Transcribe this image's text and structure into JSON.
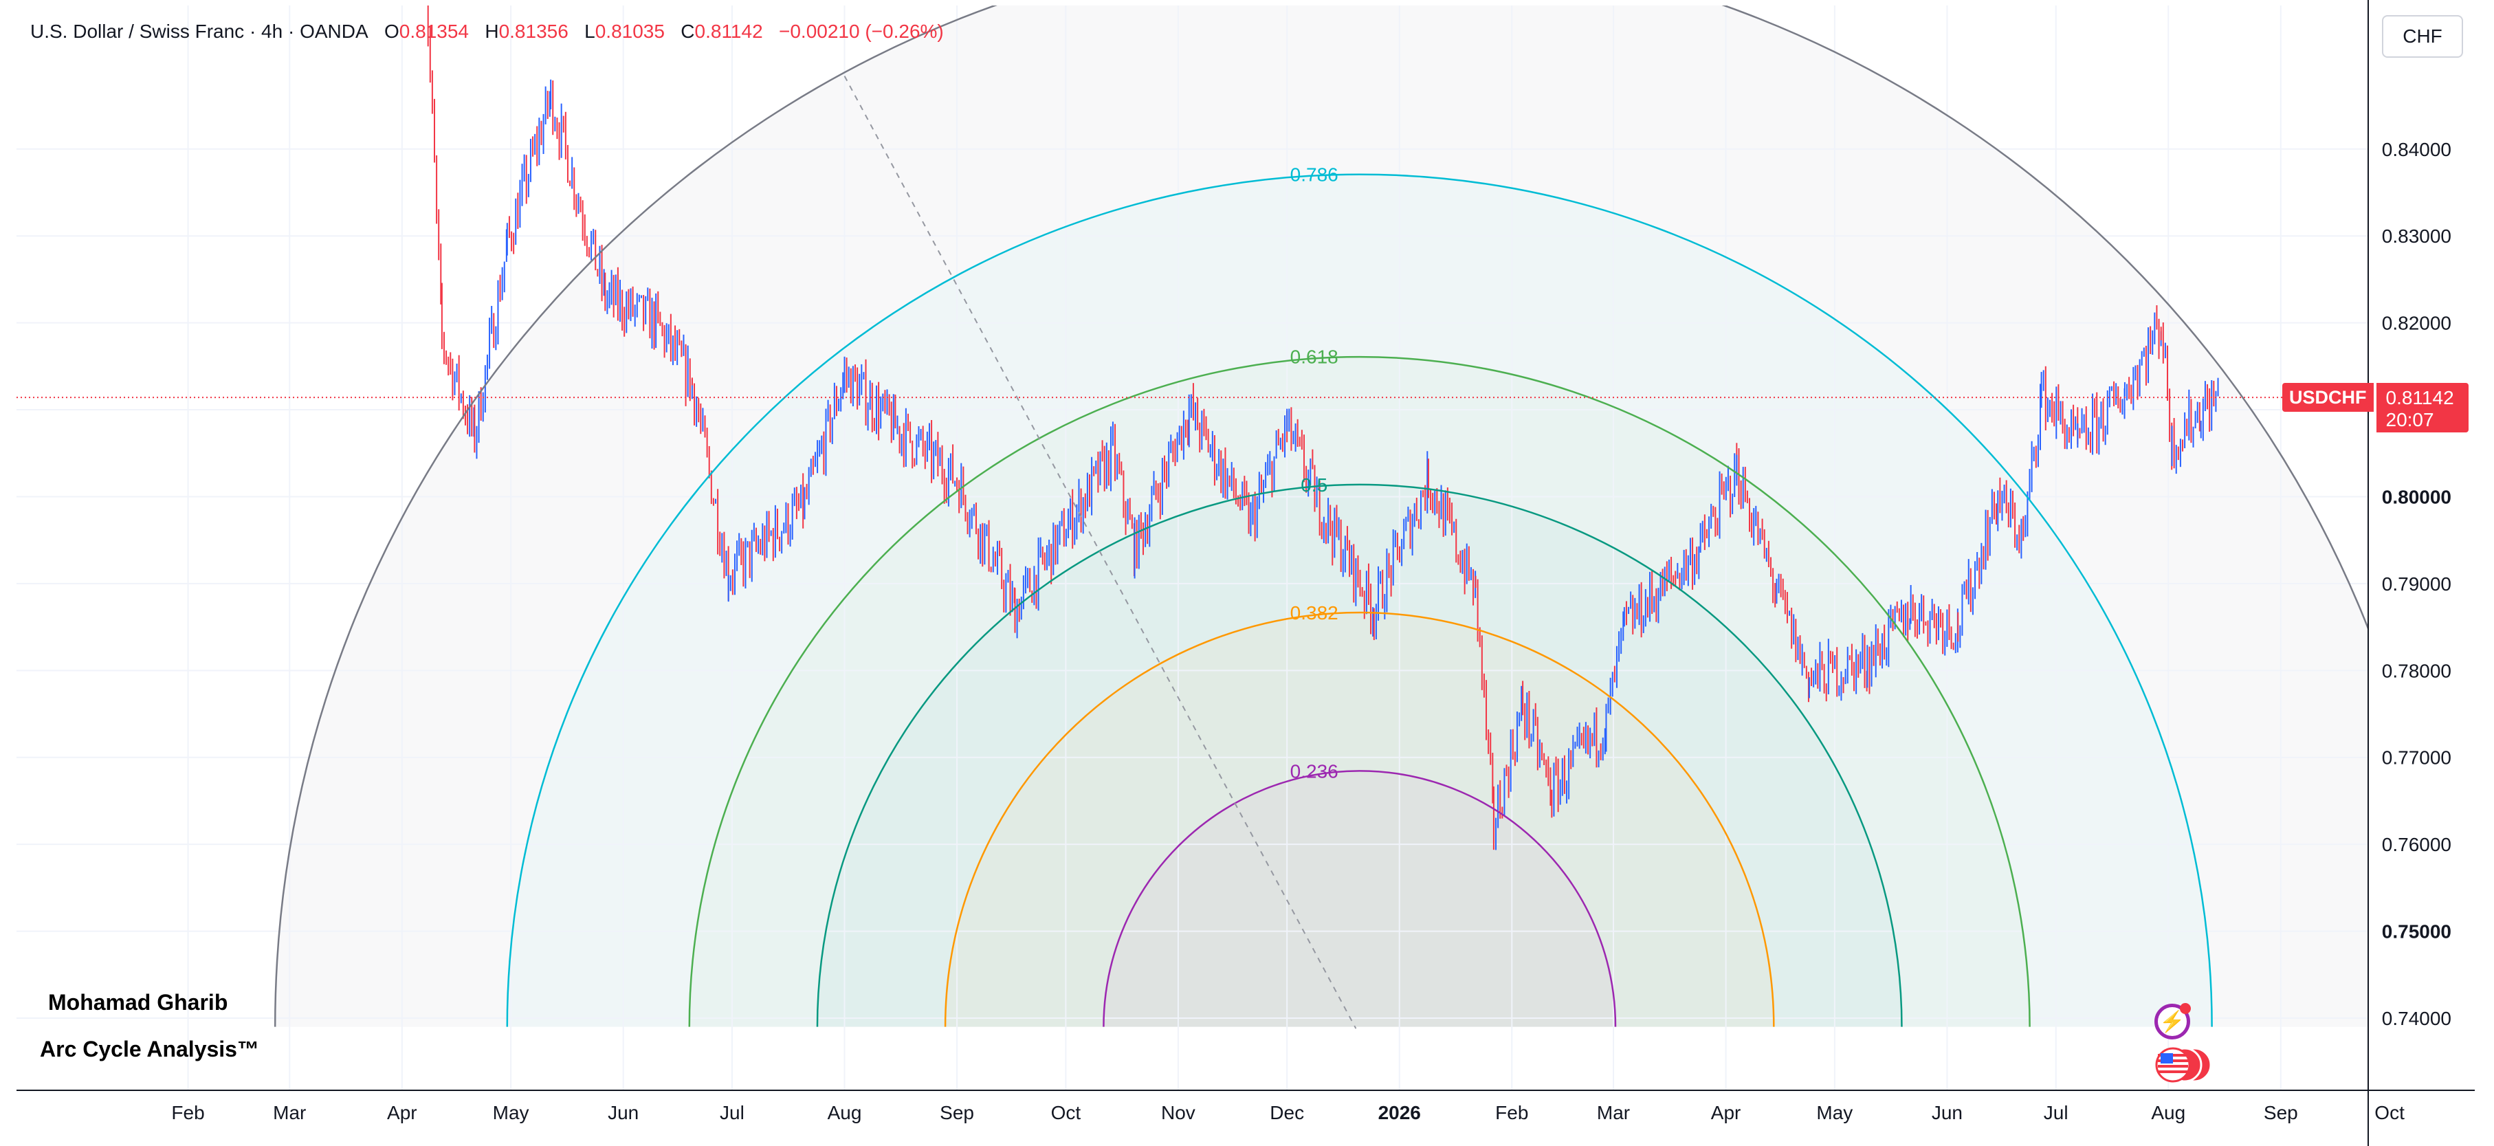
{
  "header": {
    "symbol": "U.S. Dollar / Swiss Franc · 4h · OANDA",
    "o_label": "O",
    "o": "0.81354",
    "h_label": "H",
    "h": "0.81356",
    "l_label": "L",
    "l": "0.81035",
    "c_label": "C",
    "c": "0.81142",
    "change": "−0.00210 (−0.26%)"
  },
  "currency": "CHF",
  "price_tag": {
    "symbol": "USDCHF",
    "price": "0.81142",
    "countdown": "20:07"
  },
  "author": "Mohamad Gharib",
  "subtitle": "Arc Cycle Analysis™",
  "icons": [
    "lightning-icon",
    "us-flag-icon"
  ],
  "colors": {
    "up": "#2962ff",
    "down": "#f23645",
    "outer_arc": "#787b86",
    "fib_0786": "#00bcd4",
    "fib_0618": "#4caf50",
    "fib_05": "#089981",
    "fib_0382": "#ff9800",
    "fib_0236": "#9c27b0",
    "last_price_line": "#f23645"
  },
  "chart_data": {
    "type": "candlestick",
    "symbol": "USDCHF",
    "timeframe": "4h",
    "x_tick_labels": [
      "Feb",
      "Mar",
      "Apr",
      "May",
      "Jun",
      "Jul",
      "Aug",
      "Sep",
      "Oct",
      "Nov",
      "Dec",
      "2026",
      "Feb",
      "Mar",
      "Apr",
      "May",
      "Jun",
      "Jul",
      "Aug",
      "Sep",
      "Oct"
    ],
    "y_tick_labels": [
      "0.74000",
      "0.75000",
      "0.76000",
      "0.77000",
      "0.78000",
      "0.79000",
      "0.80000",
      "0.81000",
      "0.82000",
      "0.83000",
      "0.84000"
    ],
    "ylim": [
      0.7345,
      0.8615
    ],
    "last_price": 0.81142,
    "price_path": [
      {
        "t": "2025-04-07",
        "p": 0.865
      },
      {
        "t": "2025-04-12",
        "p": 0.818
      },
      {
        "t": "2025-04-21",
        "p": 0.807
      },
      {
        "t": "2025-04-30",
        "p": 0.829
      },
      {
        "t": "2025-05-12",
        "p": 0.846
      },
      {
        "t": "2025-05-27",
        "p": 0.823
      },
      {
        "t": "2025-06-10",
        "p": 0.82
      },
      {
        "t": "2025-06-20",
        "p": 0.813
      },
      {
        "t": "2025-06-30",
        "p": 0.791
      },
      {
        "t": "2025-07-21",
        "p": 0.799
      },
      {
        "t": "2025-08-01",
        "p": 0.814
      },
      {
        "t": "2025-08-15",
        "p": 0.808
      },
      {
        "t": "2025-09-01",
        "p": 0.802
      },
      {
        "t": "2025-09-17",
        "p": 0.787
      },
      {
        "t": "2025-10-14",
        "p": 0.805
      },
      {
        "t": "2025-10-20",
        "p": 0.794
      },
      {
        "t": "2025-11-04",
        "p": 0.81
      },
      {
        "t": "2025-11-21",
        "p": 0.797
      },
      {
        "t": "2025-12-01",
        "p": 0.808
      },
      {
        "t": "2025-12-10",
        "p": 0.799
      },
      {
        "t": "2025-12-25",
        "p": 0.787
      },
      {
        "t": "2026-01-09",
        "p": 0.802
      },
      {
        "t": "2026-01-22",
        "p": 0.789
      },
      {
        "t": "2026-01-27",
        "p": 0.762
      },
      {
        "t": "2026-02-04",
        "p": 0.776
      },
      {
        "t": "2026-02-12",
        "p": 0.766
      },
      {
        "t": "2026-02-27",
        "p": 0.774
      },
      {
        "t": "2026-03-04",
        "p": 0.785
      },
      {
        "t": "2026-03-25",
        "p": 0.794
      },
      {
        "t": "2026-04-04",
        "p": 0.803
      },
      {
        "t": "2026-04-15",
        "p": 0.789
      },
      {
        "t": "2026-04-24",
        "p": 0.779
      },
      {
        "t": "2026-05-10",
        "p": 0.781
      },
      {
        "t": "2026-05-22",
        "p": 0.787
      },
      {
        "t": "2026-06-04",
        "p": 0.785
      },
      {
        "t": "2026-06-15",
        "p": 0.8
      },
      {
        "t": "2026-06-22",
        "p": 0.795
      },
      {
        "t": "2026-06-27",
        "p": 0.812
      },
      {
        "t": "2026-07-07",
        "p": 0.806
      },
      {
        "t": "2026-07-20",
        "p": 0.812
      },
      {
        "t": "2026-07-30",
        "p": 0.82
      },
      {
        "t": "2026-08-02",
        "p": 0.806
      },
      {
        "t": "2026-08-10",
        "p": 0.81
      },
      {
        "t": "2026-08-15",
        "p": 0.81142
      }
    ],
    "arc_center": {
      "t": "2025-12-21",
      "p": 0.739
    },
    "arc_outer_edge": {
      "t": "2025-02-25",
      "p": 0.739
    },
    "anchor_line": {
      "start": {
        "t": "2025-08-01",
        "p": 0.8484
      },
      "end": {
        "t": "2025-12-20",
        "p": 0.7388
      }
    },
    "fib_levels": [
      {
        "label": "0.786",
        "ratio": 0.786
      },
      {
        "label": "0.618",
        "ratio": 0.618
      },
      {
        "label": "0.5",
        "ratio": 0.5
      },
      {
        "label": "0.382",
        "ratio": 0.382
      },
      {
        "label": "0.236",
        "ratio": 0.236
      }
    ]
  }
}
